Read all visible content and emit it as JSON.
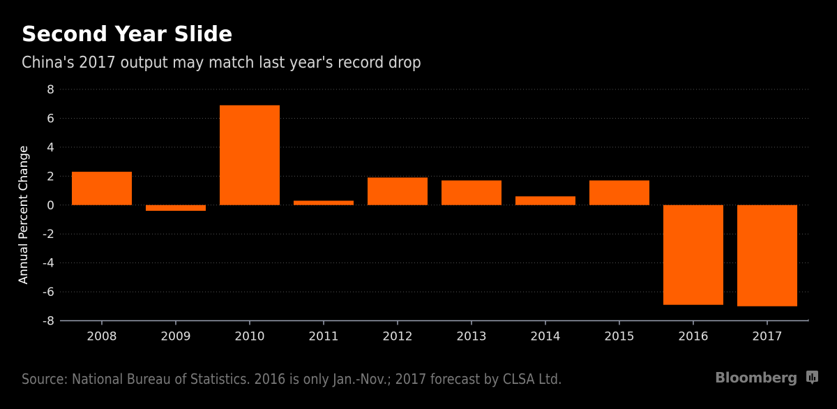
{
  "header": {
    "title": "Second Year Slide",
    "subtitle": "China's 2017 output may match last year's record drop"
  },
  "footer": {
    "source": "Source: National Bureau of Statistics. 2016 is only Jan.-Nov.; 2017 forecast by CLSA Ltd.",
    "brand": "Bloomberg",
    "brand_icon": "bloomberg-chart-icon"
  },
  "colors": {
    "bar": "#ff5f00",
    "background": "#000000",
    "grid": "#555555",
    "axis": "#9aa0b0"
  },
  "chart_data": {
    "type": "bar",
    "title": "Second Year Slide",
    "subtitle": "China's 2017 output may match last year's record drop",
    "xlabel": "",
    "ylabel": "Annual Percent Change",
    "categories": [
      "2008",
      "2009",
      "2010",
      "2011",
      "2012",
      "2013",
      "2014",
      "2015",
      "2016",
      "2017"
    ],
    "values": [
      2.3,
      -0.4,
      6.9,
      0.3,
      1.9,
      1.7,
      0.6,
      1.7,
      -6.9,
      -7.0
    ],
    "ylim": [
      -8,
      8
    ],
    "yticks": [
      8,
      6,
      4,
      2,
      0,
      -2,
      -4,
      -6,
      -8
    ],
    "ytick_labels": [
      "8",
      "6",
      "4",
      "2",
      "0",
      "-2",
      "-4",
      "-6",
      "-8"
    ],
    "grid": true,
    "legend": "none"
  }
}
